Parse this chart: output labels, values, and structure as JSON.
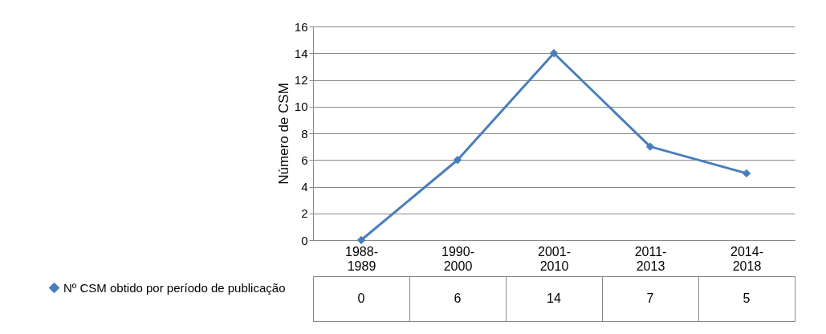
{
  "chart_data": {
    "type": "line",
    "ylabel": "Número de CSM",
    "categories": [
      "1988-1989",
      "1990-2000",
      "2001-2010",
      "2011-2013",
      "2014-2018"
    ],
    "series": [
      {
        "name": "Nº CSM obtido por período de publicação",
        "color": "#4a7ebb",
        "values": [
          0,
          6,
          14,
          7,
          5
        ]
      }
    ],
    "ylim": [
      0,
      16
    ],
    "yticks": [
      0,
      2,
      4,
      6,
      8,
      10,
      12,
      14,
      16
    ],
    "grid": "y",
    "marker": "diamond",
    "legend": "bottom left",
    "data_labels": true
  }
}
